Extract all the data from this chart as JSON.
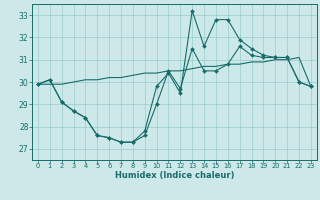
{
  "xlabel": "Humidex (Indice chaleur)",
  "background_color": "#cce8e8",
  "grid_color": "#99cccc",
  "line_color": "#1a6b6b",
  "xlim": [
    -0.5,
    23.5
  ],
  "ylim": [
    26.5,
    33.5
  ],
  "yticks": [
    27,
    28,
    29,
    30,
    31,
    32,
    33
  ],
  "xticks": [
    0,
    1,
    2,
    3,
    4,
    5,
    6,
    7,
    8,
    9,
    10,
    11,
    12,
    13,
    14,
    15,
    16,
    17,
    18,
    19,
    20,
    21,
    22,
    23
  ],
  "series1": [
    29.9,
    30.1,
    29.1,
    28.7,
    28.4,
    27.6,
    27.5,
    27.3,
    27.3,
    27.6,
    29.0,
    30.5,
    29.7,
    31.5,
    30.5,
    30.5,
    30.8,
    31.6,
    31.2,
    31.1,
    31.1,
    31.1,
    30.0,
    29.8
  ],
  "series2": [
    29.9,
    30.1,
    29.1,
    28.7,
    28.4,
    27.6,
    27.5,
    27.3,
    27.3,
    27.8,
    29.8,
    30.4,
    29.5,
    33.2,
    31.6,
    32.8,
    32.8,
    31.9,
    31.5,
    31.2,
    31.1,
    31.1,
    30.0,
    29.8
  ],
  "series3": [
    29.9,
    29.9,
    29.9,
    30.0,
    30.1,
    30.1,
    30.2,
    30.2,
    30.3,
    30.4,
    30.4,
    30.5,
    30.5,
    30.6,
    30.7,
    30.7,
    30.8,
    30.8,
    30.9,
    30.9,
    31.0,
    31.0,
    31.1,
    29.8
  ]
}
